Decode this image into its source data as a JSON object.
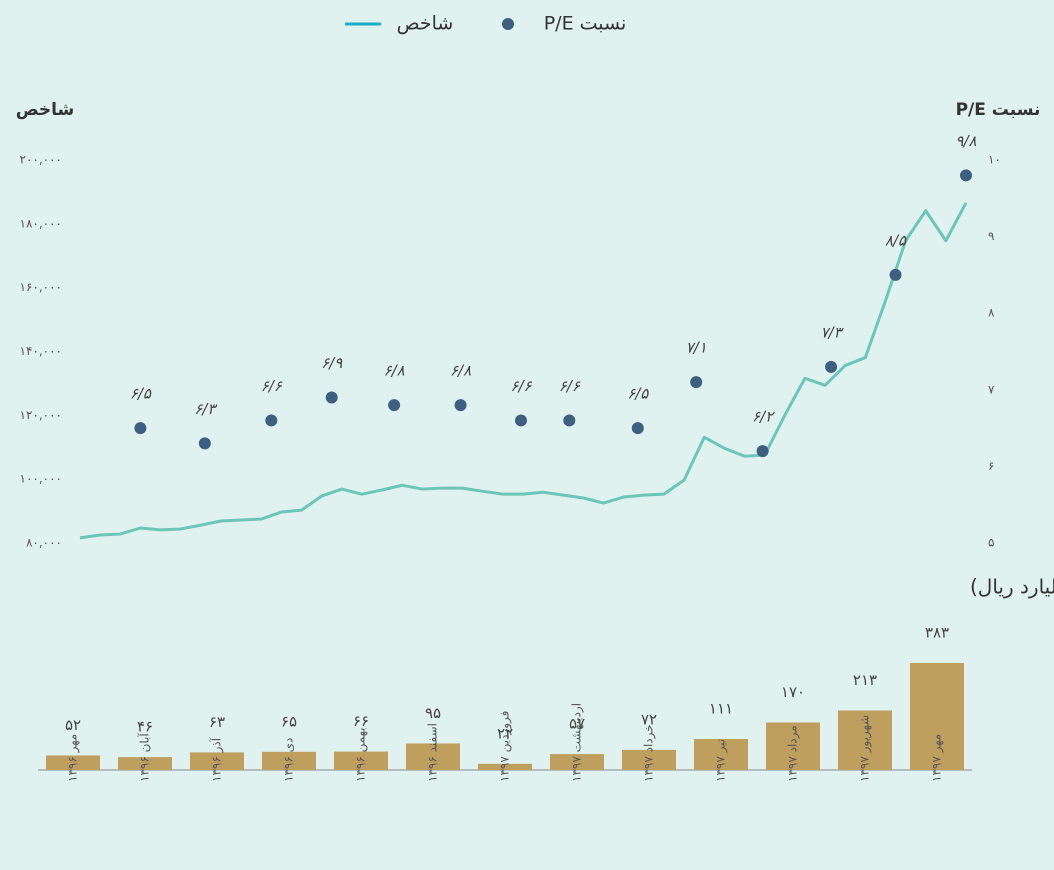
{
  "chart_data": [
    {
      "type": "line",
      "y_label": "شاخص",
      "y2_label": "نسبت P/E",
      "xlim": [
        0,
        44
      ],
      "ylim": [
        80000,
        200000
      ],
      "yticks": [
        {
          "value": 80000,
          "label": "۸۰,۰۰۰"
        },
        {
          "value": 100000,
          "label": "۱۰۰,۰۰۰"
        },
        {
          "value": 120000,
          "label": "۱۲۰,۰۰۰"
        },
        {
          "value": 140000,
          "label": "۱۴۰,۰۰۰"
        },
        {
          "value": 160000,
          "label": "۱۶۰,۰۰۰"
        },
        {
          "value": 180000,
          "label": "۱۸۰,۰۰۰"
        },
        {
          "value": 200000,
          "label": "۲۰۰,۰۰۰"
        }
      ],
      "y2lim": [
        5,
        10
      ],
      "y2ticks": [
        {
          "value": 5,
          "label": "۵"
        },
        {
          "value": 6,
          "label": "۶"
        },
        {
          "value": 7,
          "label": "۷"
        },
        {
          "value": 8,
          "label": "۸"
        },
        {
          "value": 9,
          "label": "۹"
        },
        {
          "value": 10,
          "label": "۱۰"
        }
      ],
      "series": [
        {
          "name": "شاخص",
          "type": "line",
          "color": "#6cc6b8",
          "values": [
            81600,
            82500,
            82800,
            84700,
            84100,
            84400,
            85600,
            86900,
            87200,
            87500,
            89700,
            90300,
            94700,
            96900,
            95300,
            96600,
            98100,
            96900,
            97200,
            97200,
            96200,
            95300,
            95300,
            95900,
            95000,
            94100,
            92500,
            94400,
            95000,
            95300,
            99700,
            113100,
            109700,
            107200,
            107500,
            120000,
            131600,
            129400,
            135600,
            138100,
            155900,
            174700,
            184100,
            174700,
            186600
          ]
        },
        {
          "name": "نسبت P/E",
          "type": "scatter",
          "axis": "y2",
          "color": "#3d5f80",
          "x": [
            3,
            6.2,
            9.5,
            12.5,
            15.6,
            18.9,
            21.9,
            24.3,
            27.7,
            30.6,
            33.9,
            37.3,
            40.5,
            44
          ],
          "values": [
            6.5,
            6.3,
            6.6,
            6.9,
            6.8,
            6.8,
            6.6,
            6.6,
            6.5,
            7.1,
            6.2,
            7.3,
            8.5,
            9.8
          ],
          "value_labels": [
            "۶/۵",
            "۶/۳",
            "۶/۶",
            "۶/۹",
            "۶/۸",
            "۶/۸",
            "۶/۶",
            "۶/۶",
            "۶/۵",
            "۷/۱",
            "۶/۲",
            "۷/۳",
            "۸/۵",
            "۹/۸"
          ]
        }
      ]
    },
    {
      "type": "bar",
      "title": "ارزش معاملات ماهانه (هزار میلیارد ریال)",
      "color": "#bf9f5e",
      "categories": [
        "مهر ۱۳۹۶",
        "آبان ۱۳۹۶",
        "آذر ۱۳۹۶",
        "دی ۱۳۹۶",
        "بهمن ۱۳۹۶",
        "اسفند ۱۳۹۶",
        "فروردین ۱۳۹۷",
        "اردیبهشت ۱۳۹۷",
        "خرداد ۱۳۹۷",
        "تیر ۱۳۹۷",
        "مرداد ۱۳۹۷",
        "شهریور ۱۳۹۷",
        "مهر ۱۳۹۷"
      ],
      "values": [
        52,
        46,
        63,
        65,
        66,
        95,
        22,
        57,
        72,
        111,
        170,
        213,
        383
      ],
      "value_labels": [
        "۵۲",
        "۴۶",
        "۶۳",
        "۶۵",
        "۶۶",
        "۹۵",
        "۲۲",
        "۵۷",
        "۷۲",
        "۱۱۱",
        "۱۷۰",
        "۲۱۳",
        "۳۸۳"
      ]
    }
  ]
}
